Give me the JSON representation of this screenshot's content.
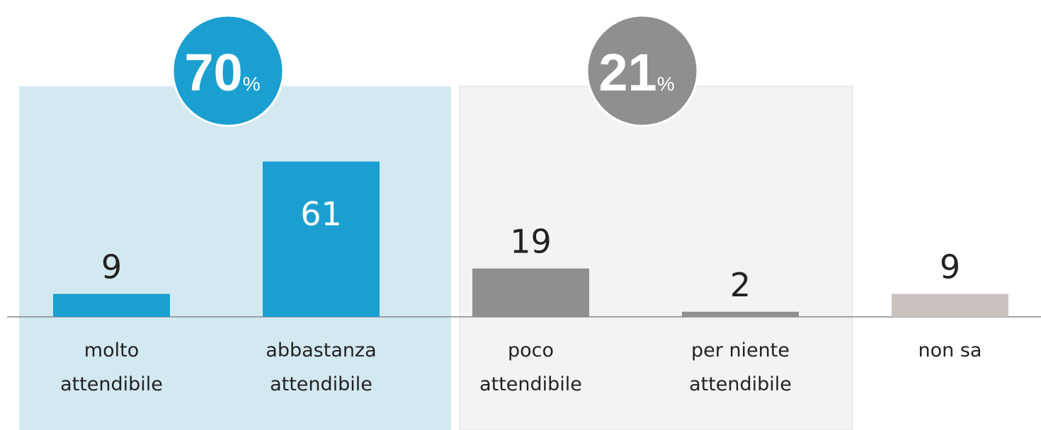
{
  "chart_data": {
    "type": "bar",
    "categories": [
      "molto\nattendibile",
      "abbastanza\nattendibile",
      "poco\nattendibile",
      "per niente\nattendibile",
      "non sa"
    ],
    "values": [
      9,
      61,
      19,
      2,
      9
    ],
    "colors": [
      "#1b9fd0",
      "#1b9fd0",
      "#8f8f8f",
      "#8f8f8f",
      "#cbc3bf"
    ],
    "groups": [
      {
        "value": 70,
        "unit": "%",
        "color": "#1b9fd0"
      },
      {
        "value": 21,
        "unit": "%",
        "color": "#8f8f8f"
      }
    ]
  }
}
